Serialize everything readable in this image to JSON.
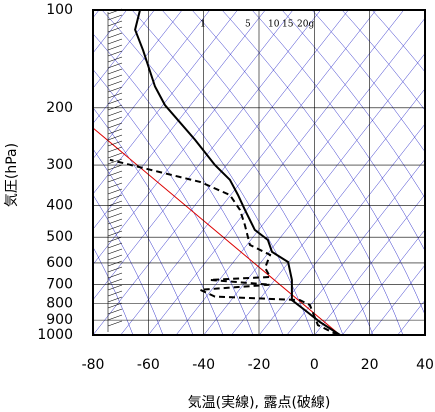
{
  "chart_data": {
    "type": "line",
    "xlabel": "気温(実線), 露点(破線)",
    "ylabel": "気圧(hPa)",
    "xlim": [
      -80,
      40
    ],
    "xticks": [
      -80,
      -60,
      -40,
      -20,
      0,
      20,
      40
    ],
    "ylim": [
      1000,
      100
    ],
    "yticks": [
      100,
      200,
      300,
      400,
      500,
      600,
      700,
      800,
      900,
      1000
    ],
    "ylog": true,
    "grid": true,
    "mixing_ratio_labels": [
      "1",
      "5",
      "10",
      "15",
      "20g"
    ],
    "series": [
      {
        "color": "#000000",
        "dashed": false,
        "x": [
          9.3,
          2.0,
          -3.4,
          -8.1,
          -8.1,
          -9.5,
          -15.3,
          -16.8,
          -21.5,
          -25.1,
          -27.6,
          -30.5,
          -35.9,
          -43.1,
          -54.0,
          -57.6,
          -61.9,
          -64.8,
          -63.0
        ],
        "values": [
          1000,
          912,
          838,
          781,
          677,
          596,
          555,
          510,
          475,
          412,
          371,
          333,
          300,
          251,
          196,
          172,
          133,
          115,
          100
        ]
      },
      {
        "color": "#000000",
        "dashed": true,
        "x": [
          8.5,
          1.3,
          -1.6,
          -5.2,
          -35.9,
          -41.3,
          -16.0,
          -37.7,
          -16.0,
          -17.8,
          -16.0,
          -23.3,
          -25.1,
          -26.9,
          -30.5,
          -41.3,
          -59.4,
          -73.9
        ],
        "values": [
          1000,
          932,
          809,
          781,
          762,
          726,
          700,
          677,
          663,
          621,
          567,
          528,
          459,
          412,
          371,
          338,
          310,
          289
        ]
      }
    ]
  }
}
